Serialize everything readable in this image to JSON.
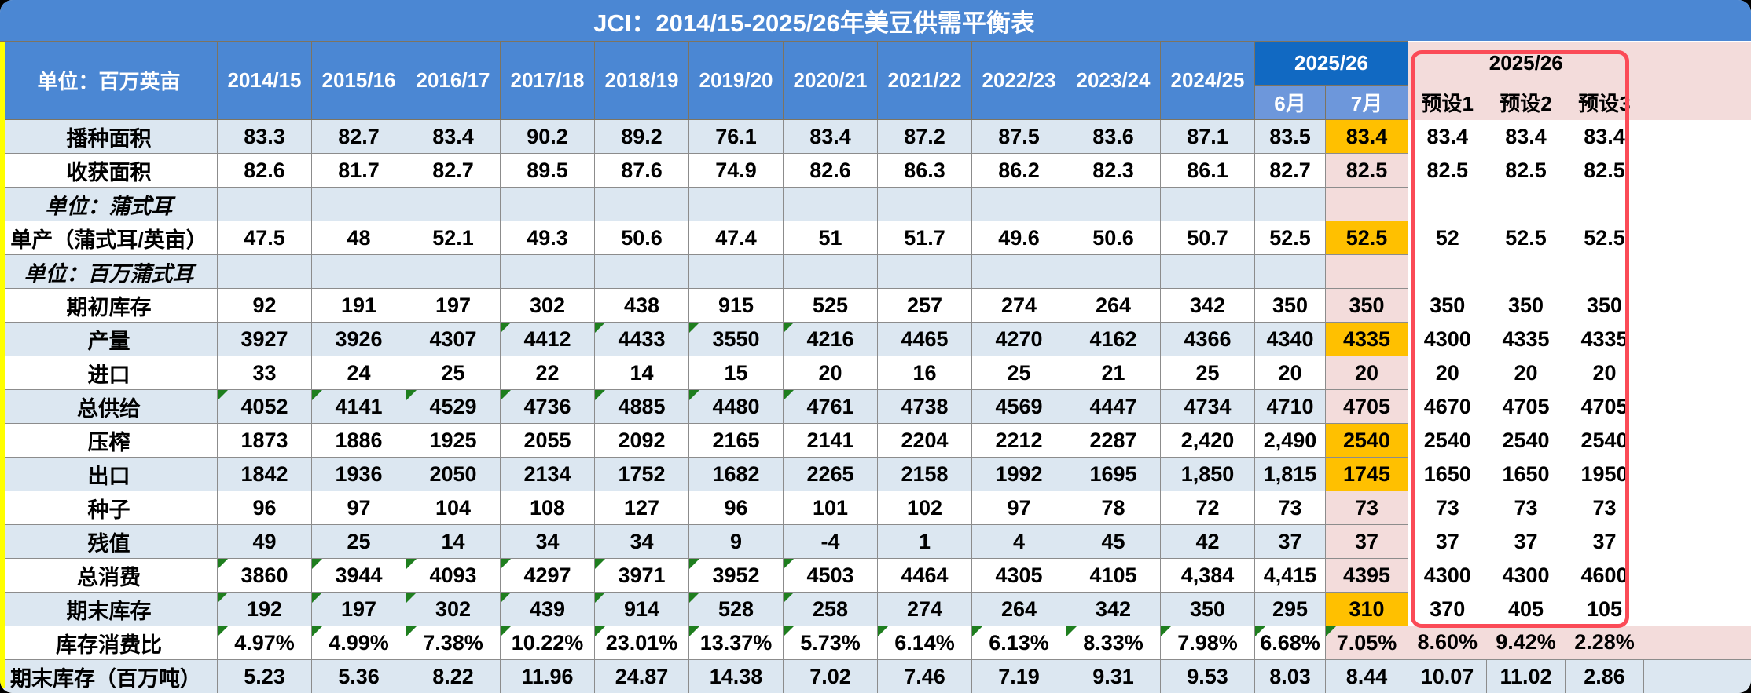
{
  "title": "JCI：2014/15-2025/26年美豆供需平衡表",
  "header": {
    "unit_label": "单位：百万英亩",
    "years": [
      "2014/15",
      "2015/16",
      "2016/17",
      "2017/18",
      "2018/19",
      "2019/20",
      "2020/21",
      "2021/22",
      "2022/23",
      "2023/24",
      "2024/25"
    ],
    "current_year": "2025/26",
    "months": [
      "6月",
      "7月"
    ],
    "preset_year": "2025/26",
    "presets": [
      "预设1",
      "预设2",
      "预设3"
    ]
  },
  "colors": {
    "header_blue": "#4b87d3",
    "deep_blue": "#1169c2",
    "month_blue": "#6d97db",
    "row_light_blue": "#dce7f1",
    "pink": "#f3dcdb",
    "orange_highlight": "#ffc000",
    "red_box_border": "#fb4b57",
    "triangle_green": "#1e7e1e",
    "gridline": "#8c8c8c",
    "yellow_strip": "#ffff00"
  },
  "rows": [
    {
      "label": "播种面积",
      "type": "data",
      "zebra": "lb",
      "jul_style": "orange",
      "years": [
        "83.3",
        "82.7",
        "83.4",
        "90.2",
        "89.2",
        "76.1",
        "83.4",
        "87.2",
        "87.5",
        "83.6",
        "87.1"
      ],
      "jun": "83.5",
      "jul": "83.4",
      "presets": [
        "83.4",
        "83.4",
        "83.4"
      ],
      "tri_years": [],
      "tri_jun": false,
      "tri_jul": false
    },
    {
      "label": "收获面积",
      "type": "data",
      "zebra": "wh",
      "jul_style": "pink",
      "years": [
        "82.6",
        "81.7",
        "82.7",
        "89.5",
        "87.6",
        "74.9",
        "82.6",
        "86.3",
        "86.2",
        "82.3",
        "86.1"
      ],
      "jun": "82.7",
      "jul": "82.5",
      "presets": [
        "82.5",
        "82.5",
        "82.5"
      ],
      "tri_years": [],
      "tri_jun": false,
      "tri_jul": false
    },
    {
      "label": "单位：蒲式耳",
      "type": "unit",
      "zebra": "lb",
      "jul_style": "pink",
      "years": [
        "",
        "",
        "",
        "",
        "",
        "",
        "",
        "",
        "",
        "",
        ""
      ],
      "jun": "",
      "jul": "",
      "presets": [
        "",
        "",
        ""
      ],
      "tri_years": [],
      "tri_jun": false,
      "tri_jul": false
    },
    {
      "label": "单产（蒲式耳/英亩）",
      "type": "data",
      "zebra": "wh",
      "jul_style": "orange",
      "years": [
        "47.5",
        "48",
        "52.1",
        "49.3",
        "50.6",
        "47.4",
        "51",
        "51.7",
        "49.6",
        "50.6",
        "50.7"
      ],
      "jun": "52.5",
      "jul": "52.5",
      "presets": [
        "52",
        "52.5",
        "52.5"
      ],
      "tri_years": [],
      "tri_jun": false,
      "tri_jul": false
    },
    {
      "label": "单位：百万蒲式耳",
      "type": "unit",
      "zebra": "lb",
      "jul_style": "pink",
      "years": [
        "",
        "",
        "",
        "",
        "",
        "",
        "",
        "",
        "",
        "",
        ""
      ],
      "jun": "",
      "jul": "",
      "presets": [
        "",
        "",
        ""
      ],
      "tri_years": [],
      "tri_jun": false,
      "tri_jul": false
    },
    {
      "label": "期初库存",
      "type": "data",
      "zebra": "wh",
      "jul_style": "pink",
      "years": [
        "92",
        "191",
        "197",
        "302",
        "438",
        "915",
        "525",
        "257",
        "274",
        "264",
        "342"
      ],
      "jun": "350",
      "jul": "350",
      "presets": [
        "350",
        "350",
        "350"
      ],
      "tri_years": [],
      "tri_jun": false,
      "tri_jul": false
    },
    {
      "label": "产量",
      "type": "data",
      "zebra": "lb",
      "jul_style": "orange",
      "years": [
        "3927",
        "3926",
        "4307",
        "4412",
        "4433",
        "3550",
        "4216",
        "4465",
        "4270",
        "4162",
        "4366"
      ],
      "jun": "4340",
      "jul": "4335",
      "presets": [
        "4300",
        "4335",
        "4335"
      ],
      "tri_years": [
        3,
        4,
        5,
        6
      ],
      "tri_jun": false,
      "tri_jul": false
    },
    {
      "label": "进口",
      "type": "data",
      "zebra": "wh",
      "jul_style": "pink",
      "years": [
        "33",
        "24",
        "25",
        "22",
        "14",
        "15",
        "20",
        "16",
        "25",
        "21",
        "25"
      ],
      "jun": "20",
      "jul": "20",
      "presets": [
        "20",
        "20",
        "20"
      ],
      "tri_years": [],
      "tri_jun": false,
      "tri_jul": false
    },
    {
      "label": "总供给",
      "type": "data",
      "zebra": "lb",
      "jul_style": "pink",
      "years": [
        "4052",
        "4141",
        "4529",
        "4736",
        "4885",
        "4480",
        "4761",
        "4738",
        "4569",
        "4447",
        "4734"
      ],
      "jun": "4710",
      "jul": "4705",
      "presets": [
        "4670",
        "4705",
        "4705"
      ],
      "tri_years": [
        0,
        1,
        2,
        3,
        4,
        5,
        6
      ],
      "tri_jun": false,
      "tri_jul": false
    },
    {
      "label": "压榨",
      "type": "data",
      "zebra": "wh",
      "jul_style": "orange",
      "years": [
        "1873",
        "1886",
        "1925",
        "2055",
        "2092",
        "2165",
        "2141",
        "2204",
        "2212",
        "2287",
        "2,420"
      ],
      "jun": "2,490",
      "jul": "2540",
      "presets": [
        "2540",
        "2540",
        "2540"
      ],
      "tri_years": [],
      "tri_jun": false,
      "tri_jul": false
    },
    {
      "label": "出口",
      "type": "data",
      "zebra": "lb",
      "jul_style": "orange",
      "years": [
        "1842",
        "1936",
        "2050",
        "2134",
        "1752",
        "1682",
        "2265",
        "2158",
        "1992",
        "1695",
        "1,850"
      ],
      "jun": "1,815",
      "jul": "1745",
      "presets": [
        "1650",
        "1650",
        "1950"
      ],
      "tri_years": [],
      "tri_jun": false,
      "tri_jul": false
    },
    {
      "label": "种子",
      "type": "data",
      "zebra": "wh",
      "jul_style": "pink",
      "years": [
        "96",
        "97",
        "104",
        "108",
        "127",
        "96",
        "101",
        "102",
        "97",
        "78",
        "72"
      ],
      "jun": "73",
      "jul": "73",
      "presets": [
        "73",
        "73",
        "73"
      ],
      "tri_years": [],
      "tri_jun": false,
      "tri_jul": false
    },
    {
      "label": "残值",
      "type": "data",
      "zebra": "lb",
      "jul_style": "pink",
      "years": [
        "49",
        "25",
        "14",
        "34",
        "34",
        "9",
        "-4",
        "1",
        "4",
        "45",
        "42"
      ],
      "jun": "37",
      "jul": "37",
      "presets": [
        "37",
        "37",
        "37"
      ],
      "tri_years": [],
      "tri_jun": false,
      "tri_jul": false
    },
    {
      "label": "总消费",
      "type": "data",
      "zebra": "wh",
      "jul_style": "pink",
      "years": [
        "3860",
        "3944",
        "4093",
        "4297",
        "3971",
        "3952",
        "4503",
        "4464",
        "4305",
        "4105",
        "4,384"
      ],
      "jun": "4,415",
      "jul": "4395",
      "presets": [
        "4300",
        "4300",
        "4600"
      ],
      "tri_years": [
        0,
        1,
        2,
        3,
        4,
        5,
        6
      ],
      "tri_jun": false,
      "tri_jul": false
    },
    {
      "label": "期末库存",
      "type": "data",
      "zebra": "lb",
      "jul_style": "orange",
      "years": [
        "192",
        "197",
        "302",
        "439",
        "914",
        "528",
        "258",
        "274",
        "264",
        "342",
        "350"
      ],
      "jun": "295",
      "jul": "310",
      "presets": [
        "370",
        "405",
        "105"
      ],
      "tri_years": [
        0,
        1,
        2,
        3,
        4,
        5,
        6
      ],
      "tri_jun": false,
      "tri_jul": false
    },
    {
      "label": "库存消费比",
      "type": "percent",
      "zebra": "wh",
      "jul_style": "pink",
      "years": [
        "4.97%",
        "4.99%",
        "7.38%",
        "10.22%",
        "23.01%",
        "13.37%",
        "5.73%",
        "6.14%",
        "6.13%",
        "8.33%",
        "7.98%"
      ],
      "jun": "6.68%",
      "jul": "7.05%",
      "presets": [
        "8.60%",
        "9.42%",
        "2.28%"
      ],
      "tri_years": [
        0,
        1,
        2,
        3,
        4,
        5,
        6,
        7,
        8,
        9,
        10
      ],
      "tri_jun": true,
      "tri_jul": true
    },
    {
      "label": "期末库存（百万吨）",
      "type": "bottom",
      "zebra": "lb",
      "jul_style": "lb",
      "years": [
        "5.23",
        "5.36",
        "8.22",
        "11.96",
        "24.87",
        "14.38",
        "7.02",
        "7.46",
        "7.19",
        "9.31",
        "9.53"
      ],
      "jun": "8.03",
      "jul": "8.44",
      "presets": [
        "10.07",
        "11.02",
        "2.86"
      ],
      "tri_years": [],
      "tri_jun": false,
      "tri_jul": false
    }
  ]
}
